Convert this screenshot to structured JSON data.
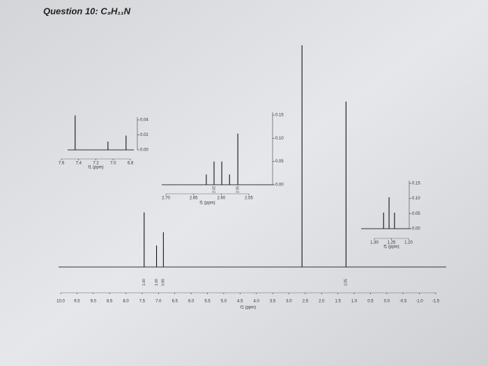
{
  "chart_data": [
    {
      "type": "spectrum",
      "title": "Question 10: C₈H₁₁N",
      "xlabel": "f1 (ppm)",
      "x": [
        7.44,
        7.06,
        6.85,
        2.6,
        1.25
      ],
      "values": [
        0.033,
        0.013,
        0.021,
        0.134,
        0.1
      ],
      "integral_labels": [
        "1.00",
        "1.00",
        "0.99",
        null,
        "2.05"
      ],
      "xlim": [
        10,
        -1.5
      ],
      "xticks": [
        {
          "value": 10,
          "label": "10.0"
        },
        9.5,
        {
          "value": 9,
          "label": "9.0"
        },
        8.5,
        {
          "value": 8,
          "label": "8.0"
        },
        7.5,
        {
          "value": 7,
          "label": "7.0"
        },
        6.5,
        {
          "value": 6,
          "label": "6.0"
        },
        5.5,
        {
          "value": 5,
          "label": "5.0"
        },
        4.5,
        {
          "value": 4,
          "label": "4.0"
        },
        3.5,
        {
          "value": 3,
          "label": "3.0"
        },
        2.5,
        {
          "value": 2,
          "label": "2.0"
        },
        1.5,
        {
          "value": 1,
          "label": "1.0"
        },
        0.5,
        {
          "value": 0,
          "label": "0.0"
        },
        -0.5,
        {
          "value": -1,
          "label": "-1.0"
        },
        -1.5
      ]
    },
    {
      "type": "spectrum",
      "xlabel": "f1 (ppm)",
      "x": [
        7.44,
        7.06,
        6.85
      ],
      "values": [
        0.046,
        0.011,
        0.019
      ],
      "xlim": [
        7.6,
        6.8
      ],
      "xticks": [
        7.6,
        7.4,
        7.2,
        {
          "value": 7,
          "label": "7.0"
        },
        6.8
      ],
      "ylim": [
        0,
        0.04
      ],
      "yticks": [
        {
          "value": 0.04,
          "label": "0.04"
        },
        {
          "value": 0.02,
          "label": "0.02"
        },
        {
          "value": 0,
          "label": "0.00"
        }
      ]
    },
    {
      "type": "spectrum",
      "xlabel": "f1 (ppm)",
      "x": [
        2.627,
        2.613,
        2.599,
        2.585,
        2.57
      ],
      "values": [
        0.022,
        0.05,
        0.05,
        0.022,
        0.11
      ],
      "integral_labels": [
        null,
        "2.02",
        null,
        null,
        "2.05"
      ],
      "xlim": [
        2.7,
        2.55
      ],
      "xticks": [
        {
          "value": 2.7,
          "label": "2.70"
        },
        2.65,
        {
          "value": 2.6,
          "label": "2.60"
        },
        2.55
      ],
      "ylim": [
        0,
        0.15
      ],
      "yticks": [
        0.15,
        {
          "value": 0.1,
          "label": "0.10"
        },
        0.05,
        {
          "value": 0,
          "label": "0.00"
        }
      ]
    },
    {
      "type": "spectrum",
      "xlabel": "f1 (ppm)",
      "x": [
        1.273,
        1.257,
        1.241
      ],
      "values": [
        0.053,
        0.104,
        0.053
      ],
      "xlim": [
        1.3,
        1.2
      ],
      "xticks": [
        {
          "value": 1.3,
          "label": "1.30"
        },
        1.25,
        {
          "value": 1.2,
          "label": "1.20"
        }
      ],
      "ylim": [
        0,
        0.15
      ],
      "yticks": [
        0.15,
        {
          "value": 0.1,
          "label": "0.10"
        },
        0.05,
        {
          "value": 0,
          "label": "0.00"
        }
      ]
    }
  ]
}
